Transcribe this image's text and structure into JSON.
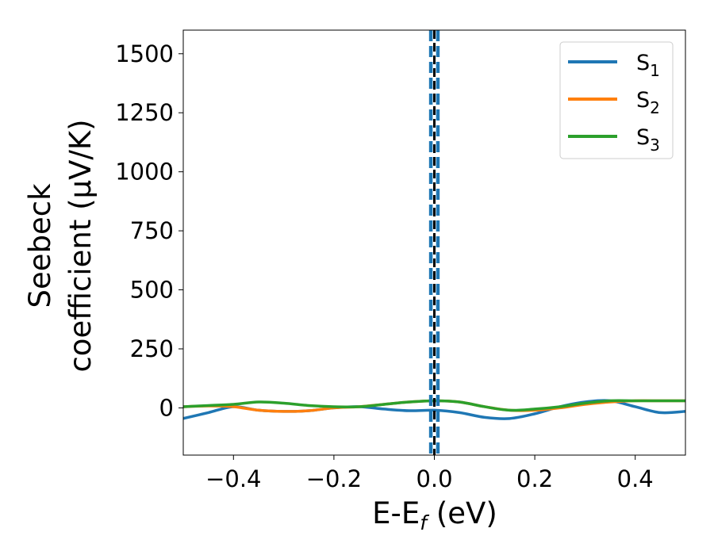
{
  "chart_data": {
    "type": "line",
    "xlabel": {
      "main": "E-E",
      "sub": "f",
      "tail": " (eV)"
    },
    "ylabel": {
      "line1": "Seebeck",
      "line2": "coefficient  (μV/K)"
    },
    "xlim": [
      -0.5,
      0.5
    ],
    "ylim": [
      -200,
      1600
    ],
    "xticks": [
      -0.4,
      -0.2,
      0.0,
      0.2,
      0.4
    ],
    "xtick_labels": [
      "−0.4",
      "−0.2",
      "0.0",
      "0.2",
      "0.4"
    ],
    "yticks": [
      0,
      250,
      500,
      750,
      1000,
      1250,
      1500
    ],
    "ytick_labels": [
      "0",
      "250",
      "500",
      "750",
      "1000",
      "1250",
      "1500"
    ],
    "grid": false,
    "legend_position": "top-right",
    "vertical_lines": [
      {
        "x": 0.0,
        "color": "#000000",
        "style": "dashed"
      },
      {
        "x": -0.007,
        "color": "#1f77b4",
        "style": "dashed"
      },
      {
        "x": 0.007,
        "color": "#1f77b4",
        "style": "dashed"
      }
    ],
    "series": [
      {
        "name": "S",
        "name_sub": "1",
        "color": "#1f77b4",
        "x": [
          -0.5,
          -0.45,
          -0.4,
          -0.35,
          -0.3,
          -0.25,
          -0.2,
          -0.15,
          -0.1,
          -0.05,
          0.0,
          0.05,
          0.1,
          0.15,
          0.2,
          0.25,
          0.3,
          0.35,
          0.4,
          0.45,
          0.5
        ],
        "y": [
          -45,
          -20,
          5,
          -10,
          -15,
          -12,
          0,
          5,
          -5,
          -12,
          -10,
          -20,
          -40,
          -45,
          -25,
          5,
          25,
          30,
          5,
          -20,
          -15
        ]
      },
      {
        "name": "S",
        "name_sub": "2",
        "color": "#ff7f0e",
        "x": [
          -0.5,
          -0.45,
          -0.4,
          -0.35,
          -0.3,
          -0.25,
          -0.2,
          -0.15,
          -0.1,
          -0.05,
          0.0,
          0.05,
          0.1,
          0.15,
          0.2,
          0.25,
          0.3,
          0.35,
          0.4,
          0.45,
          0.5
        ],
        "y": [
          5,
          8,
          5,
          -10,
          -15,
          -12,
          0,
          5,
          15,
          25,
          30,
          25,
          5,
          -10,
          -10,
          0,
          15,
          25,
          30,
          30,
          30
        ]
      },
      {
        "name": "S",
        "name_sub": "3",
        "color": "#2ca02c",
        "x": [
          -0.5,
          -0.45,
          -0.4,
          -0.35,
          -0.3,
          -0.25,
          -0.2,
          -0.15,
          -0.1,
          -0.05,
          0.0,
          0.05,
          0.1,
          0.15,
          0.2,
          0.25,
          0.3,
          0.35,
          0.4,
          0.45,
          0.5
        ],
        "y": [
          5,
          10,
          15,
          25,
          20,
          10,
          5,
          5,
          15,
          25,
          30,
          25,
          5,
          -10,
          -5,
          5,
          20,
          30,
          30,
          30,
          30
        ]
      }
    ]
  }
}
